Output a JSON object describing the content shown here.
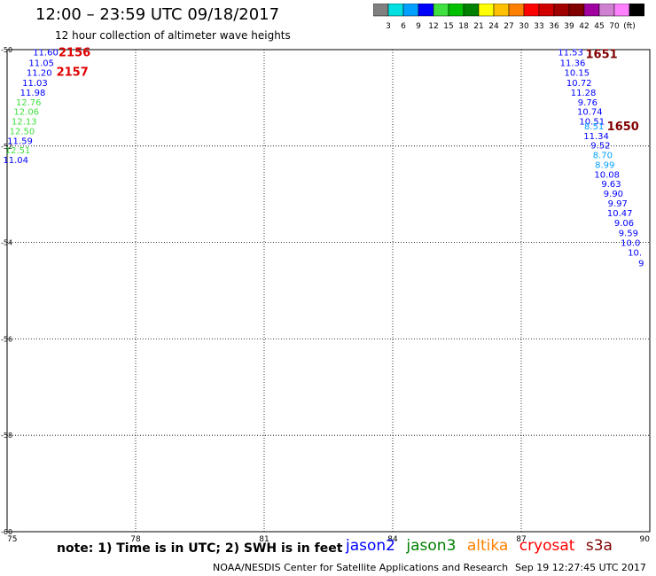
{
  "title": "12:00 – 23:59 UTC 09/18/2017",
  "subtitle": "12 hour collection of altimeter wave heights",
  "colorbar": {
    "labels": [
      "3",
      "6",
      "9",
      "12",
      "15",
      "18",
      "21",
      "24",
      "27",
      "30",
      "33",
      "36",
      "39",
      "42",
      "45",
      "70",
      "(ft)"
    ],
    "colors": [
      "#808080",
      "#00e0e0",
      "#00a0ff",
      "#0000ff",
      "#40e040",
      "#00c000",
      "#008000",
      "#ffff00",
      "#ffc000",
      "#ff8000",
      "#ff0000",
      "#d00000",
      "#a00000",
      "#800000",
      "#a000a0",
      "#d080d0",
      "#ff80ff",
      "#000000"
    ]
  },
  "note": "note: 1) Time is in UTC; 2) SWH is in feet",
  "missions": [
    {
      "name": "jason2",
      "color": "#0000ff"
    },
    {
      "name": "jason3",
      "color": "#008000"
    },
    {
      "name": "altika",
      "color": "#ff8000"
    },
    {
      "name": "cryosat",
      "color": "#ff0000"
    },
    {
      "name": "s3a",
      "color": "#800000"
    }
  ],
  "credit": "NOAA/NESDIS Center for Satellite Applications and Research",
  "timestamp": "Sep 19 12:27:45 UTC 2017",
  "chart_data": {
    "type": "scatter",
    "title": "12:00 – 23:59 UTC 09/18/2017",
    "xlim": [
      75,
      90
    ],
    "ylim": [
      -60,
      -50
    ],
    "xticks": [
      75,
      78,
      81,
      84,
      87,
      90
    ],
    "yticks": [
      -50,
      -52,
      -54,
      -56,
      -58,
      -60
    ],
    "xtick_labels": [
      "75",
      "78",
      "81",
      "84",
      "87",
      "90"
    ],
    "ytick_labels": [
      "-50",
      "-52",
      "-54",
      "-56",
      "-58",
      "-60"
    ],
    "grid": true,
    "points": [
      {
        "x": 75.9,
        "y": -50.05,
        "label": "11.60",
        "color": "#0000ff"
      },
      {
        "x": 75.8,
        "y": -50.27,
        "label": "11.05",
        "color": "#0000ff"
      },
      {
        "x": 75.75,
        "y": -50.47,
        "label": "11.20",
        "color": "#0000ff"
      },
      {
        "x": 75.65,
        "y": -50.68,
        "label": "11.03",
        "color": "#0000ff"
      },
      {
        "x": 75.6,
        "y": -50.88,
        "label": "11.98",
        "color": "#0000ff"
      },
      {
        "x": 75.5,
        "y": -51.08,
        "label": "12.76",
        "color": "#40e040"
      },
      {
        "x": 75.45,
        "y": -51.28,
        "label": "12.06",
        "color": "#40e040"
      },
      {
        "x": 75.4,
        "y": -51.48,
        "label": "12.13",
        "color": "#40e040"
      },
      {
        "x": 75.35,
        "y": -51.68,
        "label": "12.50",
        "color": "#40e040"
      },
      {
        "x": 75.3,
        "y": -51.88,
        "label": "11.59",
        "color": "#0000ff"
      },
      {
        "x": 75.25,
        "y": -52.08,
        "label": "12.51",
        "color": "#40e040"
      },
      {
        "x": 75.2,
        "y": -52.28,
        "label": "11.04",
        "color": "#0000ff"
      },
      {
        "x": 88.15,
        "y": -50.05,
        "label": "11.53",
        "color": "#0000ff"
      },
      {
        "x": 88.2,
        "y": -50.27,
        "label": "11.36",
        "color": "#0000ff"
      },
      {
        "x": 88.3,
        "y": -50.47,
        "label": "10.15",
        "color": "#0000ff"
      },
      {
        "x": 88.35,
        "y": -50.68,
        "label": "10.72",
        "color": "#0000ff"
      },
      {
        "x": 88.45,
        "y": -50.88,
        "label": "11.28",
        "color": "#0000ff"
      },
      {
        "x": 88.55,
        "y": -51.08,
        "label": "9.76",
        "color": "#0000ff"
      },
      {
        "x": 88.6,
        "y": -51.28,
        "label": "10.74",
        "color": "#0000ff"
      },
      {
        "x": 88.65,
        "y": -51.48,
        "label": "10.51",
        "color": "#0000ff"
      },
      {
        "x": 88.7,
        "y": -51.58,
        "label": "8.51",
        "color": "#00a0ff"
      },
      {
        "x": 88.75,
        "y": -51.78,
        "label": "11.34",
        "color": "#0000ff"
      },
      {
        "x": 88.85,
        "y": -51.98,
        "label": "9.52",
        "color": "#0000ff"
      },
      {
        "x": 88.9,
        "y": -52.18,
        "label": "8.70",
        "color": "#00a0ff"
      },
      {
        "x": 88.95,
        "y": -52.38,
        "label": "8.99",
        "color": "#00a0ff"
      },
      {
        "x": 89.0,
        "y": -52.58,
        "label": "10.08",
        "color": "#0000ff"
      },
      {
        "x": 89.1,
        "y": -52.78,
        "label": "9.63",
        "color": "#0000ff"
      },
      {
        "x": 89.15,
        "y": -52.98,
        "label": "9.90",
        "color": "#0000ff"
      },
      {
        "x": 89.25,
        "y": -53.18,
        "label": "9.97",
        "color": "#0000ff"
      },
      {
        "x": 89.3,
        "y": -53.38,
        "label": "10.47",
        "color": "#0000ff"
      },
      {
        "x": 89.4,
        "y": -53.58,
        "label": "9.06",
        "color": "#0000ff"
      },
      {
        "x": 89.5,
        "y": -53.8,
        "label": "9.59",
        "color": "#0000ff"
      },
      {
        "x": 89.55,
        "y": -54.0,
        "label": "10.0",
        "color": "#0000ff"
      },
      {
        "x": 89.65,
        "y": -54.2,
        "label": "10.",
        "color": "#0000ff"
      },
      {
        "x": 89.8,
        "y": -54.42,
        "label": "9",
        "color": "#0000ff"
      }
    ],
    "annotations": [
      {
        "x": 76.2,
        "y": -50.05,
        "text": "2156",
        "color": "#e00000"
      },
      {
        "x": 76.15,
        "y": -50.45,
        "text": "2157",
        "color": "#e00000"
      },
      {
        "x": 88.5,
        "y": -50.08,
        "text": "1651",
        "color": "#800000"
      },
      {
        "x": 89.0,
        "y": -51.58,
        "text": "1650",
        "color": "#800000"
      }
    ]
  }
}
